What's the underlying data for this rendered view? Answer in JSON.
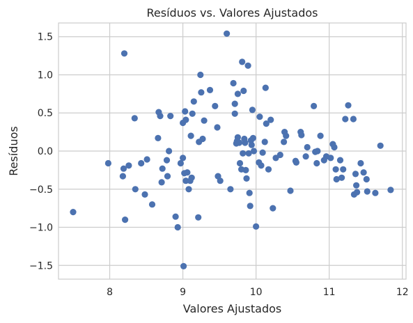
{
  "chart_data": {
    "type": "scatter",
    "title": "Resíduos vs. Valores Ajustados",
    "xlabel": "Valores Ajustados",
    "ylabel": "Resíduos",
    "xlim": [
      7.3,
      12.05
    ],
    "ylim": [
      -1.68,
      1.68
    ],
    "xticks": [
      8,
      9,
      10,
      11,
      12
    ],
    "xtick_labels": [
      "8",
      "9",
      "10",
      "11",
      "12"
    ],
    "yticks": [
      -1.5,
      -1.0,
      -0.5,
      0.0,
      0.5,
      1.0,
      1.5
    ],
    "ytick_labels": [
      "−1.5",
      "−1.0",
      "−0.5",
      "0.0",
      "0.5",
      "1.0",
      "1.5"
    ],
    "grid": true,
    "marker_color": "#4c72b0",
    "background_color": "#ffffff",
    "grid_color": "#cccccc",
    "points": [
      [
        7.5,
        -0.8
      ],
      [
        7.98,
        -0.16
      ],
      [
        8.18,
        -0.33
      ],
      [
        8.19,
        -0.23
      ],
      [
        8.2,
        1.28
      ],
      [
        8.21,
        -0.9
      ],
      [
        8.26,
        -0.19
      ],
      [
        8.34,
        0.43
      ],
      [
        8.35,
        -0.5
      ],
      [
        8.43,
        -0.16
      ],
      [
        8.48,
        -0.57
      ],
      [
        8.51,
        -0.11
      ],
      [
        8.58,
        -0.7
      ],
      [
        8.66,
        0.17
      ],
      [
        8.67,
        0.51
      ],
      [
        8.69,
        0.46
      ],
      [
        8.71,
        -0.41
      ],
      [
        8.72,
        -0.23
      ],
      [
        8.78,
        -0.12
      ],
      [
        8.79,
        -0.33
      ],
      [
        8.81,
        0.0
      ],
      [
        8.83,
        0.46
      ],
      [
        8.9,
        -0.86
      ],
      [
        8.93,
        -1.0
      ],
      [
        8.97,
        -0.16
      ],
      [
        9.0,
        -0.09
      ],
      [
        9.01,
        -1.51
      ],
      [
        9.0,
        0.37
      ],
      [
        9.02,
        -0.29
      ],
      [
        9.03,
        0.52
      ],
      [
        9.04,
        0.41
      ],
      [
        9.04,
        -0.39
      ],
      [
        9.06,
        -0.28
      ],
      [
        9.08,
        -0.5
      ],
      [
        9.1,
        -0.39
      ],
      [
        9.12,
        -0.35
      ],
      [
        9.11,
        0.2
      ],
      [
        9.13,
        0.49
      ],
      [
        9.15,
        0.65
      ],
      [
        9.21,
        -0.87
      ],
      [
        9.22,
        0.12
      ],
      [
        9.24,
        1.0
      ],
      [
        9.25,
        0.77
      ],
      [
        9.27,
        0.16
      ],
      [
        9.29,
        0.4
      ],
      [
        9.37,
        0.8
      ],
      [
        9.44,
        0.59
      ],
      [
        9.47,
        0.31
      ],
      [
        9.48,
        -0.33
      ],
      [
        9.51,
        -0.39
      ],
      [
        9.6,
        1.54
      ],
      [
        9.65,
        -0.5
      ],
      [
        9.69,
        0.89
      ],
      [
        9.71,
        0.62
      ],
      [
        9.71,
        0.49
      ],
      [
        9.73,
        0.1
      ],
      [
        9.74,
        0.13
      ],
      [
        9.75,
        0.18
      ],
      [
        9.75,
        0.75
      ],
      [
        9.77,
        0.11
      ],
      [
        9.78,
        -0.16
      ],
      [
        9.8,
        -0.24
      ],
      [
        9.81,
        1.17
      ],
      [
        9.82,
        -0.03
      ],
      [
        9.83,
        0.79
      ],
      [
        9.84,
        0.16
      ],
      [
        9.85,
        0.11
      ],
      [
        9.86,
        -0.25
      ],
      [
        9.87,
        -0.36
      ],
      [
        9.89,
        1.12
      ],
      [
        9.9,
        -0.03
      ],
      [
        9.91,
        -0.55
      ],
      [
        9.92,
        -0.72
      ],
      [
        9.93,
        0.14
      ],
      [
        9.94,
        0.08
      ],
      [
        9.95,
        0.54
      ],
      [
        9.96,
        0.17
      ],
      [
        9.97,
        0.0
      ],
      [
        10.0,
        -0.99
      ],
      [
        10.04,
        -0.15
      ],
      [
        10.05,
        0.45
      ],
      [
        10.07,
        -0.19
      ],
      [
        10.09,
        -0.02
      ],
      [
        10.12,
        0.12
      ],
      [
        10.13,
        0.83
      ],
      [
        10.14,
        0.36
      ],
      [
        10.17,
        -0.24
      ],
      [
        10.2,
        0.41
      ],
      [
        10.23,
        -0.75
      ],
      [
        10.27,
        -0.09
      ],
      [
        10.33,
        -0.05
      ],
      [
        10.38,
        0.12
      ],
      [
        10.39,
        0.25
      ],
      [
        10.41,
        0.2
      ],
      [
        10.47,
        -0.52
      ],
      [
        10.54,
        -0.13
      ],
      [
        10.55,
        -0.15
      ],
      [
        10.61,
        0.25
      ],
      [
        10.62,
        0.21
      ],
      [
        10.68,
        -0.07
      ],
      [
        10.7,
        0.05
      ],
      [
        10.79,
        0.59
      ],
      [
        10.81,
        -0.01
      ],
      [
        10.83,
        -0.16
      ],
      [
        10.84,
        0.0
      ],
      [
        10.88,
        0.2
      ],
      [
        10.93,
        -0.12
      ],
      [
        10.96,
        -0.07
      ],
      [
        11.02,
        -0.09
      ],
      [
        11.05,
        0.09
      ],
      [
        11.07,
        0.05
      ],
      [
        11.09,
        -0.24
      ],
      [
        11.1,
        -0.37
      ],
      [
        11.15,
        -0.12
      ],
      [
        11.17,
        -0.35
      ],
      [
        11.19,
        -0.24
      ],
      [
        11.22,
        0.42
      ],
      [
        11.26,
        0.6
      ],
      [
        11.33,
        0.42
      ],
      [
        11.34,
        -0.57
      ],
      [
        11.36,
        -0.3
      ],
      [
        11.37,
        -0.45
      ],
      [
        11.38,
        -0.54
      ],
      [
        11.43,
        -0.16
      ],
      [
        11.47,
        -0.28
      ],
      [
        11.51,
        -0.37
      ],
      [
        11.52,
        -0.53
      ],
      [
        11.63,
        -0.55
      ],
      [
        11.7,
        0.07
      ],
      [
        11.84,
        -0.51
      ]
    ]
  }
}
